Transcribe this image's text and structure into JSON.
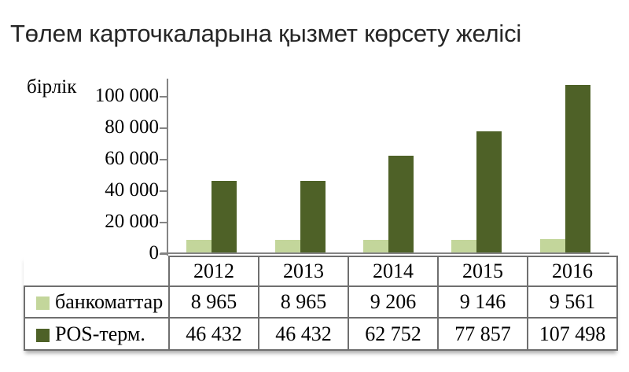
{
  "title": "Төлем карточкаларына қызмет көрсету желісі",
  "y_axis_unit_label": "бірлік",
  "colors": {
    "series_atms": "#c3d69b",
    "series_pos_terminals": "#4e6127",
    "axis": "#848484",
    "table_border": "#6f6f6f",
    "title_text": "#262626",
    "background": "#ffffff"
  },
  "chart_data": {
    "type": "bar",
    "title": "Төлем карточкаларына қызмет көрсету желісі",
    "xlabel": "",
    "ylabel": "бірлік",
    "categories": [
      "2012",
      "2013",
      "2014",
      "2015",
      "2016"
    ],
    "series": [
      {
        "key": "atms",
        "name": "банкоматтар",
        "color": "#c3d69b",
        "values": [
          8965,
          8965,
          9206,
          9146,
          9561
        ],
        "display_values": [
          "8 965",
          "8 965",
          "9 206",
          "9 146",
          "9 561"
        ]
      },
      {
        "key": "pos-terminals",
        "name": "POS-терм.",
        "color": "#4e6127",
        "values": [
          46432,
          46432,
          62752,
          77857,
          107498
        ],
        "display_values": [
          "46 432",
          "46 432",
          "62 752",
          "77 857",
          "107 498"
        ]
      }
    ],
    "ylim": [
      0,
      111500
    ],
    "ytick_values": [
      0,
      20000,
      40000,
      60000,
      80000,
      100000
    ],
    "ytick_labels": [
      "0",
      "20 000",
      "40 000",
      "60 000",
      "80 000",
      "100 000"
    ],
    "grid": false,
    "legend_position": "data-table-left-column"
  }
}
